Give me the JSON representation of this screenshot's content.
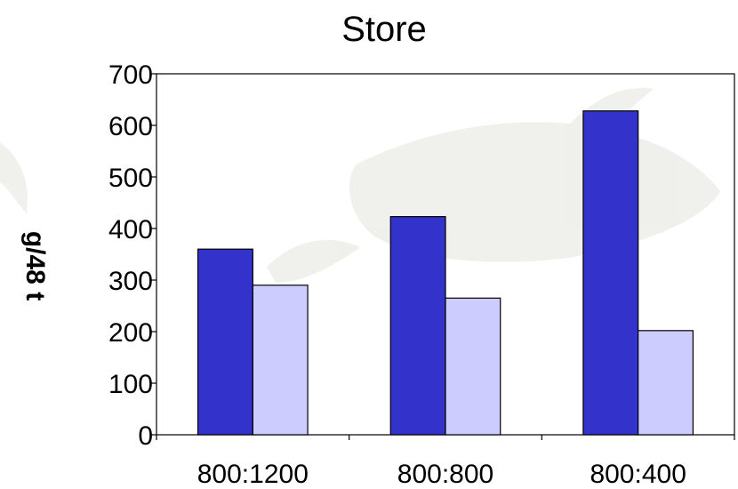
{
  "chart_data": {
    "type": "bar",
    "title": "Store",
    "ylabel": "g/48 t",
    "xlabel": "",
    "categories": [
      "800:1200",
      "800:800",
      "800:400"
    ],
    "series": [
      {
        "values": [
          360,
          423,
          628
        ],
        "color": "#3333cc"
      },
      {
        "values": [
          290,
          265,
          202
        ],
        "color": "#ccccff"
      }
    ],
    "ylim": [
      0,
      700
    ],
    "yticks": [
      0,
      100,
      200,
      300,
      400,
      500,
      600,
      700
    ],
    "grid": false,
    "legend": "none",
    "background_watermark": "whale"
  }
}
